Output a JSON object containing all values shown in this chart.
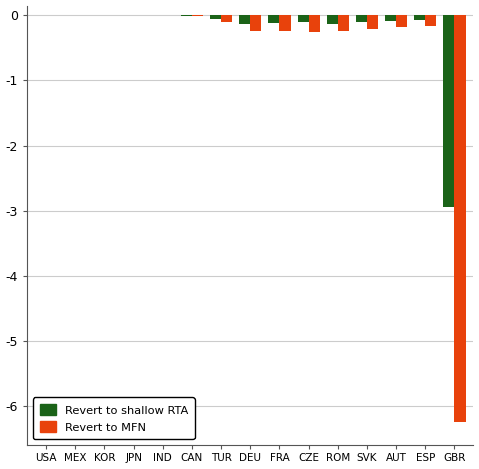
{
  "categories": [
    "USA",
    "MEX",
    "KOR",
    "JPN",
    "IND",
    "CAN",
    "TUR",
    "DEU",
    "FRA",
    "CZE",
    "ROM",
    "SVK",
    "AUT",
    "ESP",
    "GBR"
  ],
  "shallow_rta": [
    0.0,
    0.0,
    0.0,
    0.0,
    0.0,
    -0.01,
    -0.05,
    -0.13,
    -0.12,
    -0.11,
    -0.13,
    -0.1,
    -0.08,
    -0.07,
    -2.95
  ],
  "mfn": [
    0.0,
    0.0,
    0.0,
    0.0,
    0.0,
    -0.01,
    -0.1,
    -0.24,
    -0.24,
    -0.26,
    -0.24,
    -0.21,
    -0.18,
    -0.16,
    -6.25
  ],
  "color_shallow": "#1b6318",
  "color_mfn": "#e8420c",
  "ylim": [
    -6.6,
    0.15
  ],
  "yticks": [
    0,
    -1,
    -2,
    -3,
    -4,
    -5,
    -6
  ],
  "ytick_labels": [
    "0",
    "-1",
    "-2",
    "-3",
    "-4",
    "-5",
    "-6"
  ],
  "background_color": "#ffffff",
  "legend_shallow": "Revert to shallow RTA",
  "legend_mfn": "Revert to MFN",
  "bar_width": 0.38
}
